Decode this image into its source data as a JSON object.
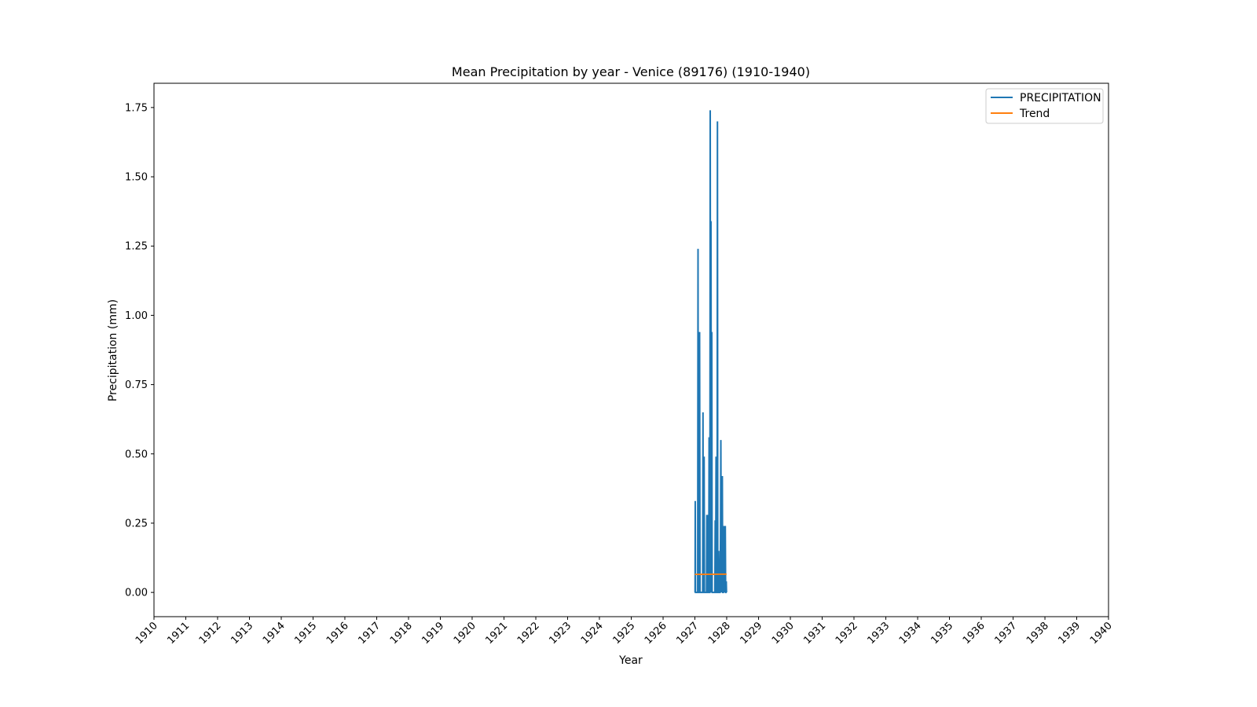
{
  "chart_data": {
    "type": "line",
    "title": "Mean Precipitation by year - Venice (89176) (1910-1940)",
    "xlabel": "Year",
    "ylabel": "Precipitation (mm)",
    "xlim": [
      "1910-01-01",
      "1940-01-01"
    ],
    "ylim": [
      -0.0875,
      1.8375
    ],
    "x_ticks": [
      "1910",
      "1911",
      "1912",
      "1913",
      "1914",
      "1915",
      "1916",
      "1917",
      "1918",
      "1919",
      "1920",
      "1921",
      "1922",
      "1923",
      "1924",
      "1925",
      "1926",
      "1927",
      "1928",
      "1929",
      "1930",
      "1931",
      "1932",
      "1933",
      "1934",
      "1935",
      "1936",
      "1937",
      "1938",
      "1939",
      "1940"
    ],
    "y_ticks": [
      "0.00",
      "0.25",
      "0.50",
      "0.75",
      "1.00",
      "1.25",
      "1.50",
      "1.75"
    ],
    "grid": false,
    "legend_position": "top-right",
    "series": [
      {
        "name": "PRECIPITATION",
        "color": "#1f77b4",
        "x": [
          "1927-01-03",
          "1927-01-05",
          "1927-01-08",
          "1927-01-10",
          "1927-01-13",
          "1927-01-15",
          "1927-01-18",
          "1927-01-22",
          "1927-01-25",
          "1927-01-29",
          "1927-02-02",
          "1927-02-06",
          "1927-02-09",
          "1927-02-12",
          "1927-02-16",
          "1927-02-20",
          "1927-02-24",
          "1927-03-01",
          "1927-03-05",
          "1927-03-09",
          "1927-03-14",
          "1927-03-18",
          "1927-03-22",
          "1927-03-26",
          "1927-03-31",
          "1927-04-04",
          "1927-04-08",
          "1927-04-12",
          "1927-04-17",
          "1927-04-21",
          "1927-04-26",
          "1927-05-01",
          "1927-05-05",
          "1927-05-09",
          "1927-05-14",
          "1927-05-18",
          "1927-05-22",
          "1927-05-27",
          "1927-06-01",
          "1927-06-05",
          "1927-06-09",
          "1927-06-13",
          "1927-06-18",
          "1927-06-22",
          "1927-06-26",
          "1927-07-01",
          "1927-07-05",
          "1927-07-09",
          "1927-07-14",
          "1927-07-18",
          "1927-07-22",
          "1927-07-27",
          "1927-08-01",
          "1927-08-05",
          "1927-08-09",
          "1927-08-14",
          "1927-08-18",
          "1927-08-22",
          "1927-08-27",
          "1927-09-01",
          "1927-09-05",
          "1927-09-09",
          "1927-09-13",
          "1927-09-17",
          "1927-09-21",
          "1927-09-26",
          "1927-10-01",
          "1927-10-05",
          "1927-10-09",
          "1927-10-13",
          "1927-10-17",
          "1927-10-22",
          "1927-10-26",
          "1927-10-31",
          "1927-11-04",
          "1927-11-08",
          "1927-11-12",
          "1927-11-16",
          "1927-11-20",
          "1927-11-24",
          "1927-11-28",
          "1927-12-02",
          "1927-12-05",
          "1927-12-09",
          "1927-12-13",
          "1927-12-16",
          "1927-12-20",
          "1927-12-23",
          "1927-12-27",
          "1927-12-30"
        ],
        "y": [
          0.0,
          0.33,
          0.0,
          0.0,
          0.0,
          0.0,
          0.0,
          0.0,
          0.0,
          0.0,
          0.0,
          1.24,
          0.0,
          0.0,
          0.0,
          0.0,
          0.94,
          0.0,
          0.0,
          0.0,
          0.0,
          0.0,
          0.0,
          0.0,
          0.0,
          0.65,
          0.0,
          0.0,
          0.49,
          0.0,
          0.0,
          0.0,
          0.0,
          0.0,
          0.0,
          0.28,
          0.0,
          0.0,
          0.0,
          0.28,
          0.0,
          0.56,
          0.0,
          0.0,
          1.74,
          0.0,
          1.34,
          0.0,
          0.94,
          0.0,
          0.0,
          0.0,
          0.0,
          0.0,
          0.0,
          0.0,
          0.0,
          0.26,
          0.0,
          0.49,
          0.0,
          0.0,
          0.0,
          1.7,
          0.0,
          0.0,
          0.15,
          0.0,
          0.0,
          0.0,
          0.0,
          0.2,
          0.55,
          0.0,
          0.08,
          0.0,
          0.42,
          0.0,
          0.0,
          0.0,
          0.08,
          0.24,
          0.0,
          0.04,
          0.0,
          0.24,
          0.0,
          0.0,
          0.04,
          0.0
        ]
      },
      {
        "name": "Trend",
        "color": "#ff7f0e",
        "x": [
          "1927-01-01",
          "1927-12-31"
        ],
        "y": [
          0.065,
          0.066
        ]
      }
    ]
  }
}
